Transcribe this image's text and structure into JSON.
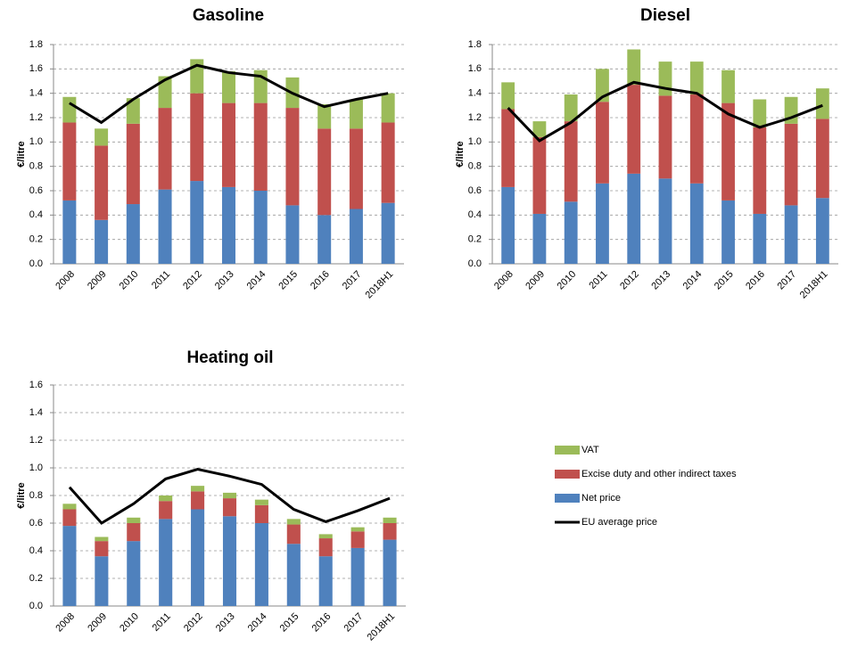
{
  "chart_data": [
    {
      "type": "bar",
      "title": "Gasoline",
      "ylabel": "€/litre",
      "categories": [
        "2008",
        "2009",
        "2010",
        "2011",
        "2012",
        "2013",
        "2014",
        "2015",
        "2016",
        "2017",
        "2018H1"
      ],
      "ylim": [
        0,
        1.8
      ],
      "yticks": [
        {
          "value": 0,
          "label": "0.0"
        },
        {
          "value": 0.2,
          "label": "0.2"
        },
        {
          "value": 0.4,
          "label": "0.4"
        },
        {
          "value": 0.6,
          "label": "0.6"
        },
        {
          "value": 0.8,
          "label": "0.8"
        },
        {
          "value": 1,
          "label": "1.0"
        },
        {
          "value": 1.2,
          "label": "1.2"
        },
        {
          "value": 1.4,
          "label": "1.4"
        },
        {
          "value": 1.6,
          "label": "1.6"
        },
        {
          "value": 1.8,
          "label": "1.8"
        }
      ],
      "grid": true,
      "series": [
        {
          "name": "VAT",
          "color": "#9bbb59",
          "values": [
            0.21,
            0.14,
            0.21,
            0.26,
            0.28,
            0.26,
            0.27,
            0.25,
            0.2,
            0.24,
            0.24
          ]
        },
        {
          "name": "Excise duty and other indirect taxes",
          "color": "#c0504d",
          "values": [
            0.64,
            0.61,
            0.66,
            0.67,
            0.72,
            0.69,
            0.72,
            0.8,
            0.71,
            0.66,
            0.66
          ]
        },
        {
          "name": "Net price",
          "color": "#4f81bd",
          "values": [
            0.52,
            0.36,
            0.49,
            0.61,
            0.68,
            0.63,
            0.6,
            0.48,
            0.4,
            0.45,
            0.5
          ]
        },
        {
          "name": "EU average price",
          "color": "#000000",
          "type": "line",
          "values": [
            1.32,
            1.16,
            1.35,
            1.51,
            1.63,
            1.57,
            1.54,
            1.4,
            1.29,
            1.35,
            1.4
          ]
        }
      ]
    },
    {
      "type": "bar",
      "title": "Diesel",
      "ylabel": "€/litre",
      "categories": [
        "2008",
        "2009",
        "2010",
        "2011",
        "2012",
        "2013",
        "2014",
        "2015",
        "2016",
        "2017",
        "2018H1"
      ],
      "ylim": [
        0,
        1.8
      ],
      "yticks": [
        {
          "value": 0,
          "label": "0.0"
        },
        {
          "value": 0.2,
          "label": "0.2"
        },
        {
          "value": 0.4,
          "label": "0.4"
        },
        {
          "value": 0.6,
          "label": "0.6"
        },
        {
          "value": 0.8,
          "label": "0.8"
        },
        {
          "value": 1,
          "label": "1.0"
        },
        {
          "value": 1.2,
          "label": "1.2"
        },
        {
          "value": 1.4,
          "label": "1.4"
        },
        {
          "value": 1.6,
          "label": "1.6"
        },
        {
          "value": 1.8,
          "label": "1.8"
        }
      ],
      "grid": true,
      "series": [
        {
          "name": "VAT",
          "color": "#9bbb59",
          "values": [
            0.22,
            0.13,
            0.22,
            0.27,
            0.29,
            0.28,
            0.27,
            0.27,
            0.23,
            0.22,
            0.25
          ]
        },
        {
          "name": "Excise duty and other indirect taxes",
          "color": "#c0504d",
          "values": [
            0.64,
            0.63,
            0.66,
            0.67,
            0.73,
            0.68,
            0.73,
            0.8,
            0.71,
            0.67,
            0.65
          ]
        },
        {
          "name": "Net price",
          "color": "#4f81bd",
          "values": [
            0.63,
            0.41,
            0.51,
            0.66,
            0.74,
            0.7,
            0.66,
            0.52,
            0.41,
            0.48,
            0.54
          ]
        },
        {
          "name": "EU average price",
          "color": "#000000",
          "type": "line",
          "values": [
            1.28,
            1.01,
            1.16,
            1.37,
            1.49,
            1.44,
            1.4,
            1.23,
            1.12,
            1.2,
            1.3
          ]
        }
      ]
    },
    {
      "type": "bar",
      "title": "Heating oil",
      "ylabel": "€/litre",
      "categories": [
        "2008",
        "2009",
        "2010",
        "2011",
        "2012",
        "2013",
        "2014",
        "2015",
        "2016",
        "2017",
        "2018H1"
      ],
      "ylim": [
        0,
        1.6
      ],
      "yticks": [
        {
          "value": 0,
          "label": "0.0"
        },
        {
          "value": 0.2,
          "label": "0.2"
        },
        {
          "value": 0.4,
          "label": "0.4"
        },
        {
          "value": 0.6,
          "label": "0.6"
        },
        {
          "value": 0.8,
          "label": "0.8"
        },
        {
          "value": 1,
          "label": "1.0"
        },
        {
          "value": 1.2,
          "label": "1.2"
        },
        {
          "value": 1.4,
          "label": "1.4"
        },
        {
          "value": 1.6,
          "label": "1.6"
        }
      ],
      "grid": true,
      "series": [
        {
          "name": "VAT",
          "color": "#9bbb59",
          "values": [
            0.04,
            0.03,
            0.04,
            0.04,
            0.04,
            0.04,
            0.04,
            0.04,
            0.03,
            0.03,
            0.04
          ]
        },
        {
          "name": "Excise duty and other indirect taxes",
          "color": "#c0504d",
          "values": [
            0.12,
            0.11,
            0.13,
            0.13,
            0.13,
            0.13,
            0.13,
            0.14,
            0.13,
            0.12,
            0.12
          ]
        },
        {
          "name": "Net price",
          "color": "#4f81bd",
          "values": [
            0.58,
            0.36,
            0.47,
            0.63,
            0.7,
            0.65,
            0.6,
            0.45,
            0.36,
            0.42,
            0.48
          ]
        },
        {
          "name": "EU average price",
          "color": "#000000",
          "type": "line",
          "values": [
            0.86,
            0.6,
            0.74,
            0.92,
            0.99,
            0.94,
            0.88,
            0.7,
            0.61,
            0.69,
            0.78
          ]
        }
      ]
    }
  ]
}
